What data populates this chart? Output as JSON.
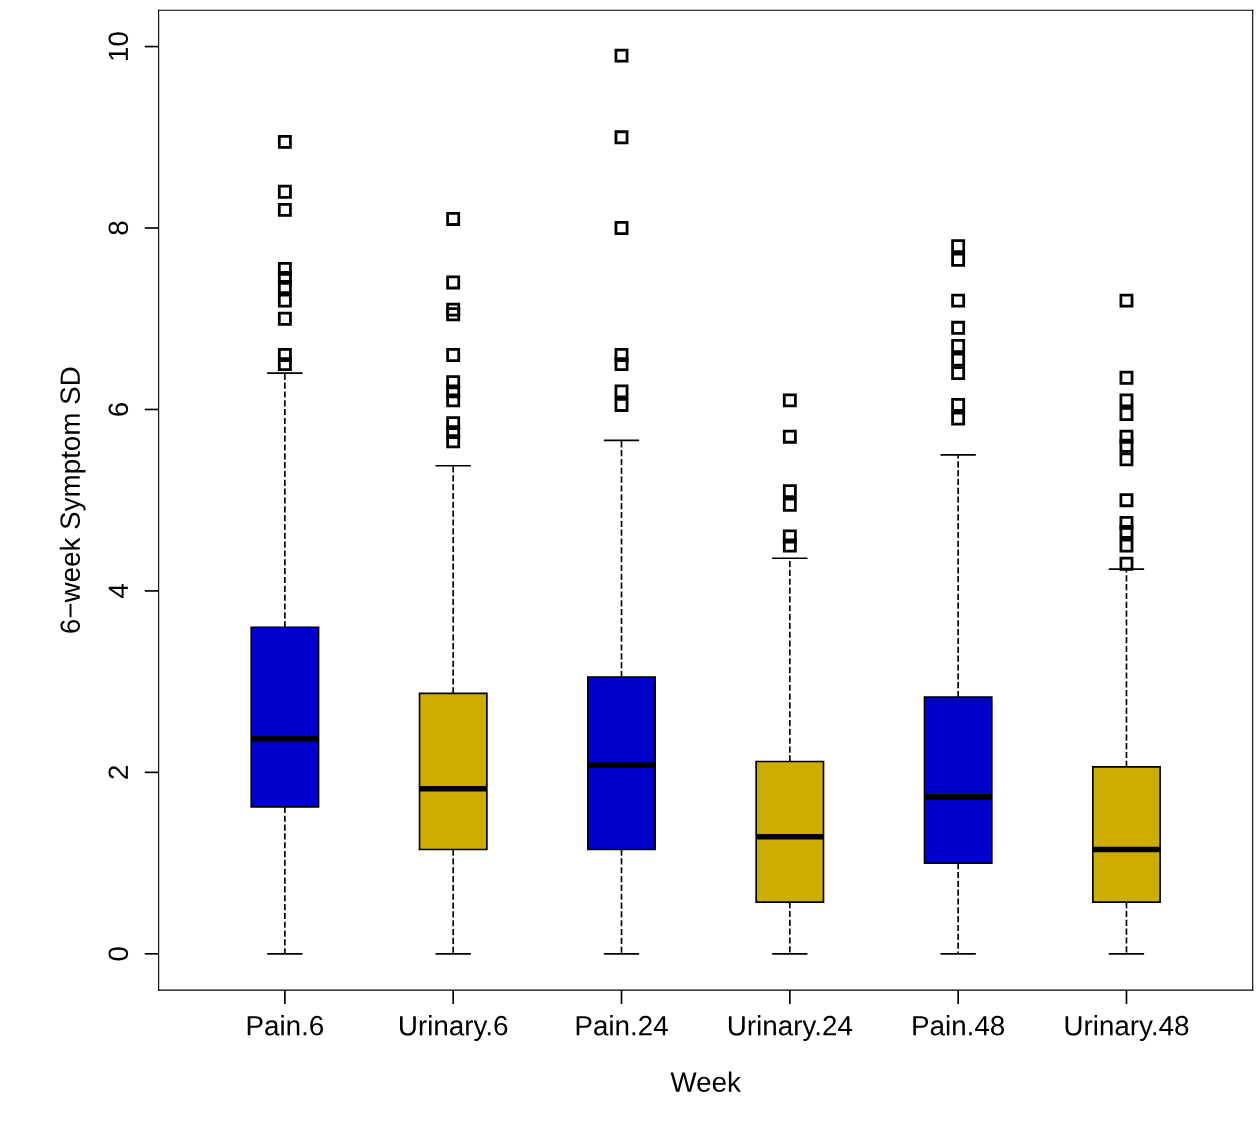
{
  "chart_data": {
    "type": "box",
    "xlabel": "Week",
    "ylabel": "6−week Symptom SD",
    "categories": [
      "Pain.6",
      "Urinary.6",
      "Pain.24",
      "Urinary.24",
      "Pain.48",
      "Urinary.48"
    ],
    "colors": [
      "#0000cd",
      "#cdad00",
      "#0000cd",
      "#cdad00",
      "#0000cd",
      "#cdad00"
    ],
    "boxes": [
      {
        "low": 0,
        "q1": 1.62,
        "median": 2.37,
        "q3": 3.6,
        "high": 6.4,
        "outliers": [
          8.95,
          8.4,
          8.2,
          7.55,
          7.45,
          7.35,
          7.2,
          7.0,
          6.6,
          6.5
        ]
      },
      {
        "low": 0,
        "q1": 1.15,
        "median": 1.82,
        "q3": 2.87,
        "high": 5.38,
        "outliers": [
          8.1,
          7.4,
          7.1,
          7.05,
          6.6,
          6.3,
          6.2,
          6.1,
          5.85,
          5.75,
          5.65
        ]
      },
      {
        "low": 0,
        "q1": 1.15,
        "median": 2.08,
        "q3": 3.05,
        "high": 5.66,
        "outliers": [
          9.9,
          9.0,
          8.0,
          6.6,
          6.5,
          6.2,
          6.05
        ]
      },
      {
        "low": 0,
        "q1": 0.57,
        "median": 1.29,
        "q3": 2.12,
        "high": 4.36,
        "outliers": [
          6.1,
          5.7,
          5.1,
          4.95,
          4.6,
          4.5
        ]
      },
      {
        "low": 0,
        "q1": 1.0,
        "median": 1.73,
        "q3": 2.83,
        "high": 5.5,
        "outliers": [
          7.8,
          7.65,
          7.2,
          6.9,
          6.7,
          6.55,
          6.4,
          6.05,
          5.9
        ]
      },
      {
        "low": 0,
        "q1": 0.57,
        "median": 1.15,
        "q3": 2.06,
        "high": 4.24,
        "outliers": [
          7.2,
          6.35,
          6.1,
          5.95,
          5.7,
          5.6,
          5.45,
          5.0,
          4.75,
          4.65,
          4.5,
          4.3
        ]
      }
    ],
    "ylim": [
      -0.4,
      10.4
    ],
    "yticks": [
      0,
      2,
      4,
      6,
      8,
      10
    ],
    "grid": false,
    "marker": "square",
    "line_style": "dashed"
  }
}
